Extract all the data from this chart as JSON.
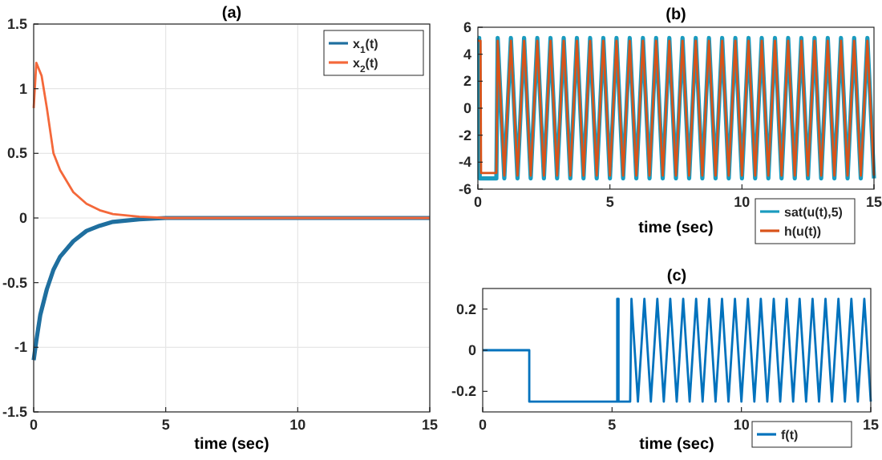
{
  "chart_data": [
    {
      "type": "line",
      "title": "(a)",
      "xlabel": "time (sec)",
      "xlim": [
        0,
        15
      ],
      "xticks": [
        0,
        5,
        10,
        15
      ],
      "ylim": [
        -1.5,
        1.5
      ],
      "yticks": [
        -1.5,
        -1,
        -0.5,
        0,
        0.5,
        1,
        1.5
      ],
      "grid": true,
      "legend": "top right",
      "series": [
        {
          "name": "x$_{1}$(t)",
          "color": "#1f6f9f",
          "x": [
            0,
            0.1,
            0.25,
            0.5,
            0.75,
            1,
            1.5,
            2,
            2.5,
            3,
            4,
            5,
            10,
            15
          ],
          "values": [
            -1.1,
            -0.95,
            -0.75,
            -0.55,
            -0.4,
            -0.3,
            -0.18,
            -0.1,
            -0.06,
            -0.03,
            -0.01,
            0,
            0,
            0
          ]
        },
        {
          "name": "x$_{2}$(t)",
          "color": "#f4683a",
          "x": [
            0,
            0.1,
            0.3,
            0.5,
            0.75,
            1,
            1.5,
            2,
            2.5,
            3,
            4,
            5,
            10,
            15
          ],
          "values": [
            0.85,
            1.2,
            1.1,
            0.85,
            0.5,
            0.37,
            0.2,
            0.11,
            0.06,
            0.03,
            0.01,
            0,
            0,
            0
          ]
        }
      ]
    },
    {
      "type": "line",
      "title": "(b)",
      "xlabel": "time (sec)",
      "xlim": [
        0,
        15
      ],
      "xticks": [
        0,
        5,
        10,
        15
      ],
      "ylim": [
        -6,
        6
      ],
      "yticks": [
        -6,
        -4,
        -2,
        0,
        2,
        4,
        6
      ],
      "legend": "bottom right",
      "series": [
        {
          "name": "sat(u(t),5)",
          "color": "#1a9bbf",
          "x": [
            0,
            0.05,
            0.07,
            0.7,
            0.75,
            1,
            1.25,
            1.5,
            1.75,
            2,
            2.25,
            2.5,
            2.75,
            3,
            3.25,
            3.5,
            3.75,
            4,
            4.25,
            4.5,
            4.75,
            5,
            5.25,
            5.5,
            5.75,
            6,
            6.25,
            6.5,
            6.75,
            7,
            7.25,
            7.5,
            7.75,
            8,
            8.25,
            8.5,
            8.75,
            9,
            9.25,
            9.5,
            9.75,
            10,
            10.25,
            10.5,
            10.75,
            11,
            11.25,
            11.5,
            11.75,
            12,
            12.25,
            12.5,
            12.75,
            13,
            13.25,
            13.5,
            13.75,
            14,
            14.25,
            14.5,
            14.75,
            15
          ],
          "values": [
            5.2,
            5.2,
            -5.2,
            -5.2,
            5.2,
            -5.2,
            5.2,
            -5.2,
            5.2,
            -5.2,
            5.2,
            -5.2,
            5.2,
            -5.2,
            5.2,
            -5.2,
            5.2,
            -5.2,
            5.2,
            -5.2,
            5.2,
            -5.2,
            5.2,
            -5.2,
            5.2,
            -5.2,
            5.2,
            -5.2,
            5.2,
            -5.2,
            5.2,
            -5.2,
            5.2,
            -5.2,
            5.2,
            -5.2,
            5.2,
            -5.2,
            5.2,
            -5.2,
            5.2,
            -5.2,
            5.2,
            -5.2,
            5.2,
            -5.2,
            5.2,
            -5.2,
            5.2,
            -5.2,
            5.2,
            -5.2,
            5.2,
            -5.2,
            5.2,
            -5.2,
            5.2,
            -5.2,
            5.2,
            -5.2,
            5.2,
            -5.2
          ]
        },
        {
          "name": "h(u(t))",
          "color": "#d95319",
          "x": [
            0,
            0.1,
            0.12,
            0.7,
            0.75,
            1,
            1.25,
            1.5,
            1.75,
            2,
            2.25,
            2.5,
            2.75,
            3,
            3.25,
            3.5,
            3.75,
            4,
            4.25,
            4.5,
            4.75,
            5,
            5.25,
            5.5,
            5.75,
            6,
            6.25,
            6.5,
            6.75,
            7,
            7.25,
            7.5,
            7.75,
            8,
            8.25,
            8.5,
            8.75,
            9,
            9.25,
            9.5,
            9.75,
            10,
            10.25,
            10.5,
            10.75,
            11,
            11.25,
            11.5,
            11.75,
            12,
            12.25,
            12.5,
            12.75,
            13,
            13.25,
            13.5,
            13.75,
            14,
            14.25,
            14.5,
            14.75,
            15
          ],
          "values": [
            5,
            5,
            -4.8,
            -4.8,
            5,
            -5,
            5,
            -5,
            5,
            -5,
            5,
            -5,
            5,
            -5,
            5,
            -5,
            5,
            -5,
            5,
            -5,
            5,
            -5,
            5,
            -5,
            5,
            -5,
            5,
            -5,
            5,
            -5,
            5,
            -5,
            5,
            -5,
            5,
            -5,
            5,
            -5,
            5,
            -5,
            5,
            -5,
            5,
            -5,
            5,
            -5,
            5,
            -5,
            5,
            -5,
            5,
            -5,
            5,
            -5,
            5,
            -5,
            5,
            -5,
            5,
            -5,
            5,
            -5
          ]
        }
      ]
    },
    {
      "type": "line",
      "title": "(c)",
      "xlabel": "time (sec)",
      "xlim": [
        0,
        15
      ],
      "xticks": [
        0,
        5,
        10,
        15
      ],
      "ylim": [
        -0.3,
        0.3
      ],
      "yticks": [
        -0.2,
        0,
        0.2
      ],
      "legend": "bottom right",
      "series": [
        {
          "name": "f(t)",
          "color": "#0072bd",
          "x": [
            0,
            1.8,
            1.8,
            5.2,
            5.2,
            5.25,
            5.25,
            5.7,
            5.75,
            6,
            6.25,
            6.5,
            6.75,
            7,
            7.25,
            7.5,
            7.75,
            8,
            8.25,
            8.5,
            8.75,
            9,
            9.25,
            9.5,
            9.75,
            10,
            10.25,
            10.5,
            10.75,
            11,
            11.25,
            11.5,
            11.75,
            12,
            12.25,
            12.5,
            12.75,
            13,
            13.25,
            13.5,
            13.75,
            14,
            14.25,
            14.5,
            14.75,
            15
          ],
          "values": [
            0,
            0,
            -0.25,
            -0.25,
            0.25,
            0.25,
            -0.25,
            -0.25,
            0.25,
            -0.25,
            0.25,
            -0.25,
            0.25,
            -0.25,
            0.25,
            -0.25,
            0.25,
            -0.25,
            0.25,
            -0.25,
            0.25,
            -0.25,
            0.25,
            -0.25,
            0.25,
            -0.25,
            0.25,
            -0.25,
            0.25,
            -0.25,
            0.25,
            -0.25,
            0.25,
            -0.25,
            0.25,
            -0.25,
            0.25,
            -0.25,
            0.25,
            -0.25,
            0.25,
            -0.25,
            0.25,
            -0.25,
            0.25,
            -0.25
          ]
        }
      ]
    }
  ]
}
